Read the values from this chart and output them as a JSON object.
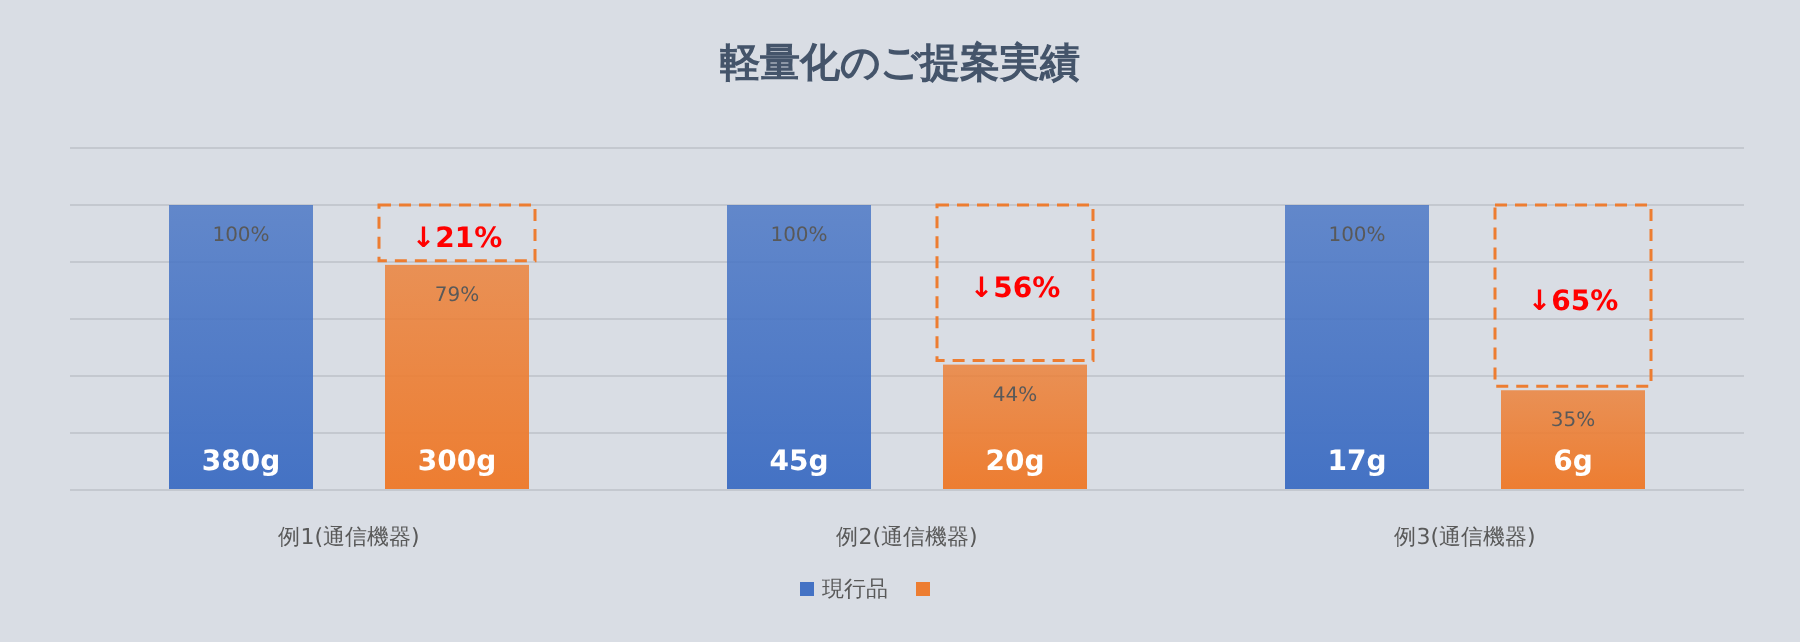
{
  "chart_data": {
    "type": "bar",
    "title": "軽量化のご提案実績",
    "categories": [
      "例1(通信機器)",
      "例2(通信機器)",
      "例3(通信機器)"
    ],
    "series": [
      {
        "name": "現行品",
        "color": "#4472c4",
        "values": [
          100,
          100,
          100
        ],
        "value_labels": [
          "100%",
          "100%",
          "100%"
        ]
      },
      {
        "color": "#ed7d31",
        "values": [
          79,
          44,
          35
        ],
        "value_labels": [
          "79%",
          "44%",
          "35%"
        ]
      }
    ],
    "ylim": [
      0,
      120
    ],
    "yticks": [
      {
        "value": 0,
        "label": null
      },
      {
        "value": 20,
        "label": null
      },
      {
        "value": 40,
        "label": null
      },
      {
        "value": 60,
        "label": null
      },
      {
        "value": 80,
        "label": null
      },
      {
        "value": 100,
        "label": null
      },
      {
        "value": 120,
        "label": null
      }
    ],
    "tick_labels": "x",
    "grid": "y",
    "legend": "bottom",
    "annotations": [
      "380g",
      "300g",
      "45g",
      "20g",
      "17g",
      "6g",
      "↓21%",
      "↓56%",
      "↓65%"
    ]
  }
}
